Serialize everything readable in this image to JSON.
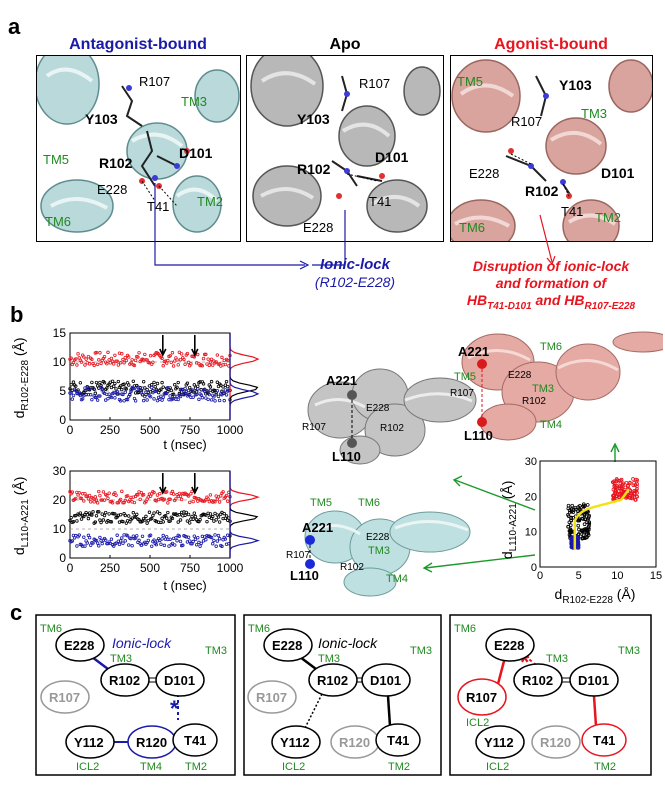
{
  "panel_labels": {
    "a": "a",
    "b": "b",
    "c": "c"
  },
  "colors": {
    "antagonist": "#1a1aa8",
    "apo": "#000000",
    "agonist": "#e8141e",
    "helix_label": "#1f8a1f",
    "cyan_helix": "#b9d9da",
    "grey_helix": "#b8b8b8",
    "pink_helix": "#d9a49e"
  },
  "panel_a": {
    "titles": {
      "antagonist": "Antagonist-bound",
      "apo": "Apo",
      "agonist": "Agonist-bound"
    },
    "antagonist": {
      "labels": {
        "tm3": "TM3",
        "tm5": "TM5",
        "tm6": "TM6",
        "tm2": "TM2",
        "y103": "Y103",
        "r107": "R107",
        "d101": "D101",
        "r102": "R102",
        "e228": "E228",
        "t41": "T41"
      }
    },
    "apo": {
      "labels": {
        "r107": "R107",
        "y103": "Y103",
        "d101": "D101",
        "r102": "R102",
        "t41": "T41",
        "e228": "E228"
      }
    },
    "agonist": {
      "labels": {
        "tm5": "TM5",
        "y103": "Y103",
        "tm3": "TM3",
        "r107": "R107",
        "e228": "E228",
        "r102": "R102",
        "d101": "D101",
        "t41": "T41",
        "tm6": "TM6",
        "tm2": "TM2"
      }
    },
    "ionic_lock_title": "Ionic-lock",
    "ionic_lock_sub": "(R102-E228)",
    "disruption_line1": "Disruption of ionic-lock",
    "disruption_line2": "and formation of",
    "hb_prefix": "HB",
    "hb1_sub": "T41-D101",
    "hb_and": " and HB",
    "hb2_sub": "R107-E228"
  },
  "panel_b": {
    "ylabel_top": "d",
    "ylabel_top_sub": "R102-E228",
    "ylabel_unit": " (Å)",
    "ylabel_bottom_sub": "L110-A221",
    "xlabel": "t (nsec)",
    "top_yticks": [
      "0",
      "5",
      "10",
      "15"
    ],
    "bottom_yticks": [
      "0",
      "10",
      "20",
      "30"
    ],
    "xticks": [
      "0",
      "250",
      "500",
      "750",
      "1000"
    ],
    "scatter_xlabel": "d",
    "scatter_xlabel_sub": "R102-E228",
    "scatter_xticks": [
      "0",
      "5",
      "10",
      "15"
    ],
    "scatter_yticks": [
      "0",
      "10",
      "20",
      "30"
    ],
    "struct_gray_labels": {
      "a221": "A221",
      "e228": "E228",
      "r107": "R107",
      "r102": "R102",
      "l110": "L110"
    },
    "struct_cyan_labels": {
      "tm5": "TM5",
      "tm6": "TM6",
      "a221": "A221",
      "e228": "E228",
      "tm3": "TM3",
      "r107": "R107",
      "r102": "R102",
      "l110": "L110",
      "tm4": "TM4"
    },
    "struct_pink_labels": {
      "a221": "A221",
      "tm6": "TM6",
      "tm5": "TM5",
      "e228": "E228",
      "tm3": "TM3",
      "r107": "R107",
      "r102": "R102",
      "l110": "L110",
      "tm4": "TM4"
    }
  },
  "chart_data": [
    {
      "type": "line",
      "ylabel": "d R102-E228 (Å)",
      "xlabel": "t (nsec)",
      "xlim": [
        0,
        1000
      ],
      "ylim": [
        0,
        15
      ],
      "series": [
        {
          "color": "red",
          "mean": 10.5
        },
        {
          "color": "black",
          "mean": 5.5
        },
        {
          "color": "blue",
          "mean": 4.5
        }
      ]
    },
    {
      "type": "line",
      "ylabel": "d L110-A221 (Å)",
      "xlabel": "t (nsec)",
      "xlim": [
        0,
        1000
      ],
      "ylim": [
        0,
        30
      ],
      "series": [
        {
          "color": "red",
          "mean": 21
        },
        {
          "color": "black",
          "mean": 14
        },
        {
          "color": "blue",
          "mean": 6
        }
      ]
    },
    {
      "type": "scatter",
      "xlabel": "d R102-E228 (Å)",
      "ylabel": "d L110-A221 (Å)",
      "xlim": [
        0,
        15
      ],
      "ylim": [
        0,
        30
      ],
      "series": [
        {
          "color": "blue",
          "x_center": 4.5,
          "y_center": 7
        },
        {
          "color": "black",
          "x_center": 5,
          "y_center": 13
        },
        {
          "color": "red",
          "x_center": 11,
          "y_center": 22
        }
      ]
    }
  ],
  "panel_c": {
    "box1": {
      "tm6": "TM6",
      "tm3": "TM3",
      "tm3b": "TM3",
      "e228": "E228",
      "r102": "R102",
      "d101": "D101",
      "r107": "R107",
      "t41": "T41",
      "y112": "Y112",
      "r120": "R120",
      "ionic_lock": "Ionic-lock",
      "icl2": "ICL2",
      "tm4": "TM4",
      "tm2": "TM2"
    },
    "box2": {
      "tm6": "TM6",
      "tm3": "TM3",
      "tm3b": "TM3",
      "e228": "E228",
      "r102": "R102",
      "d101": "D101",
      "r107": "R107",
      "t41": "T41",
      "y112": "Y112",
      "r120": "R120",
      "ionic_lock": "Ionic-lock",
      "icl2": "ICL2",
      "tm2": "TM2"
    },
    "box3": {
      "tm6": "TM6",
      "tm3": "TM3",
      "tm3b": "TM3",
      "e228": "E228",
      "r102": "R102",
      "d101": "D101",
      "r107": "R107",
      "t41": "T41",
      "y112": "Y112",
      "r120": "R120",
      "icl2": "ICL2",
      "icl2b": "ICL2",
      "tm2": "TM2"
    }
  }
}
